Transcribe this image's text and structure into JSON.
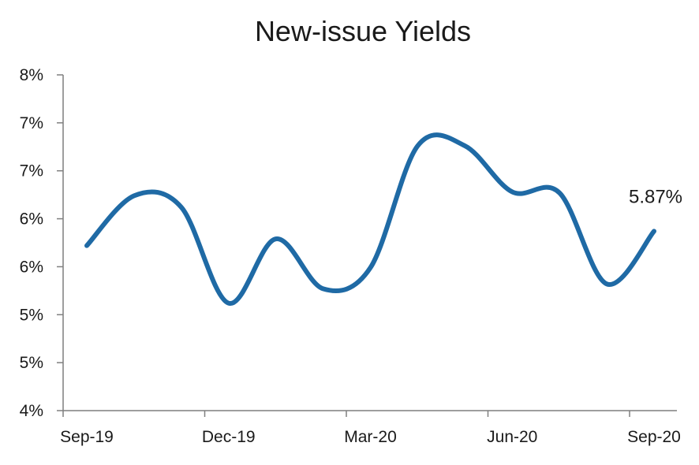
{
  "chart_data": {
    "type": "line",
    "title": "New-issue Yields",
    "xlabel": "",
    "ylabel": "",
    "y_tick_labels": [
      "4%",
      "5%",
      "5%",
      "6%",
      "6%",
      "7%",
      "7%",
      "8%"
    ],
    "y_ticks": [
      4.0,
      4.5,
      5.0,
      5.5,
      6.0,
      6.5,
      7.0,
      7.5
    ],
    "ylim": [
      4.0,
      7.5
    ],
    "x_tick_labels": [
      "Sep-19",
      "Dec-19",
      "Mar-20",
      "Jun-20",
      "Sep-20"
    ],
    "grid": false,
    "legend": "none",
    "color": "#1f6aa5",
    "series": [
      {
        "x": [
          "Sep-19",
          "Oct-19",
          "Nov-19",
          "Dec-19",
          "Jan-20",
          "Feb-20",
          "Mar-20",
          "Apr-20",
          "May-20",
          "Jun-20",
          "Jul-20",
          "Aug-20",
          "Sep-20"
        ],
        "values": [
          5.72,
          6.24,
          6.12,
          5.12,
          5.79,
          5.27,
          5.49,
          6.76,
          6.76,
          6.28,
          6.27,
          5.32,
          5.87
        ]
      }
    ],
    "annotations": [
      {
        "text": "5.87%",
        "target": "Sep-20"
      }
    ]
  }
}
